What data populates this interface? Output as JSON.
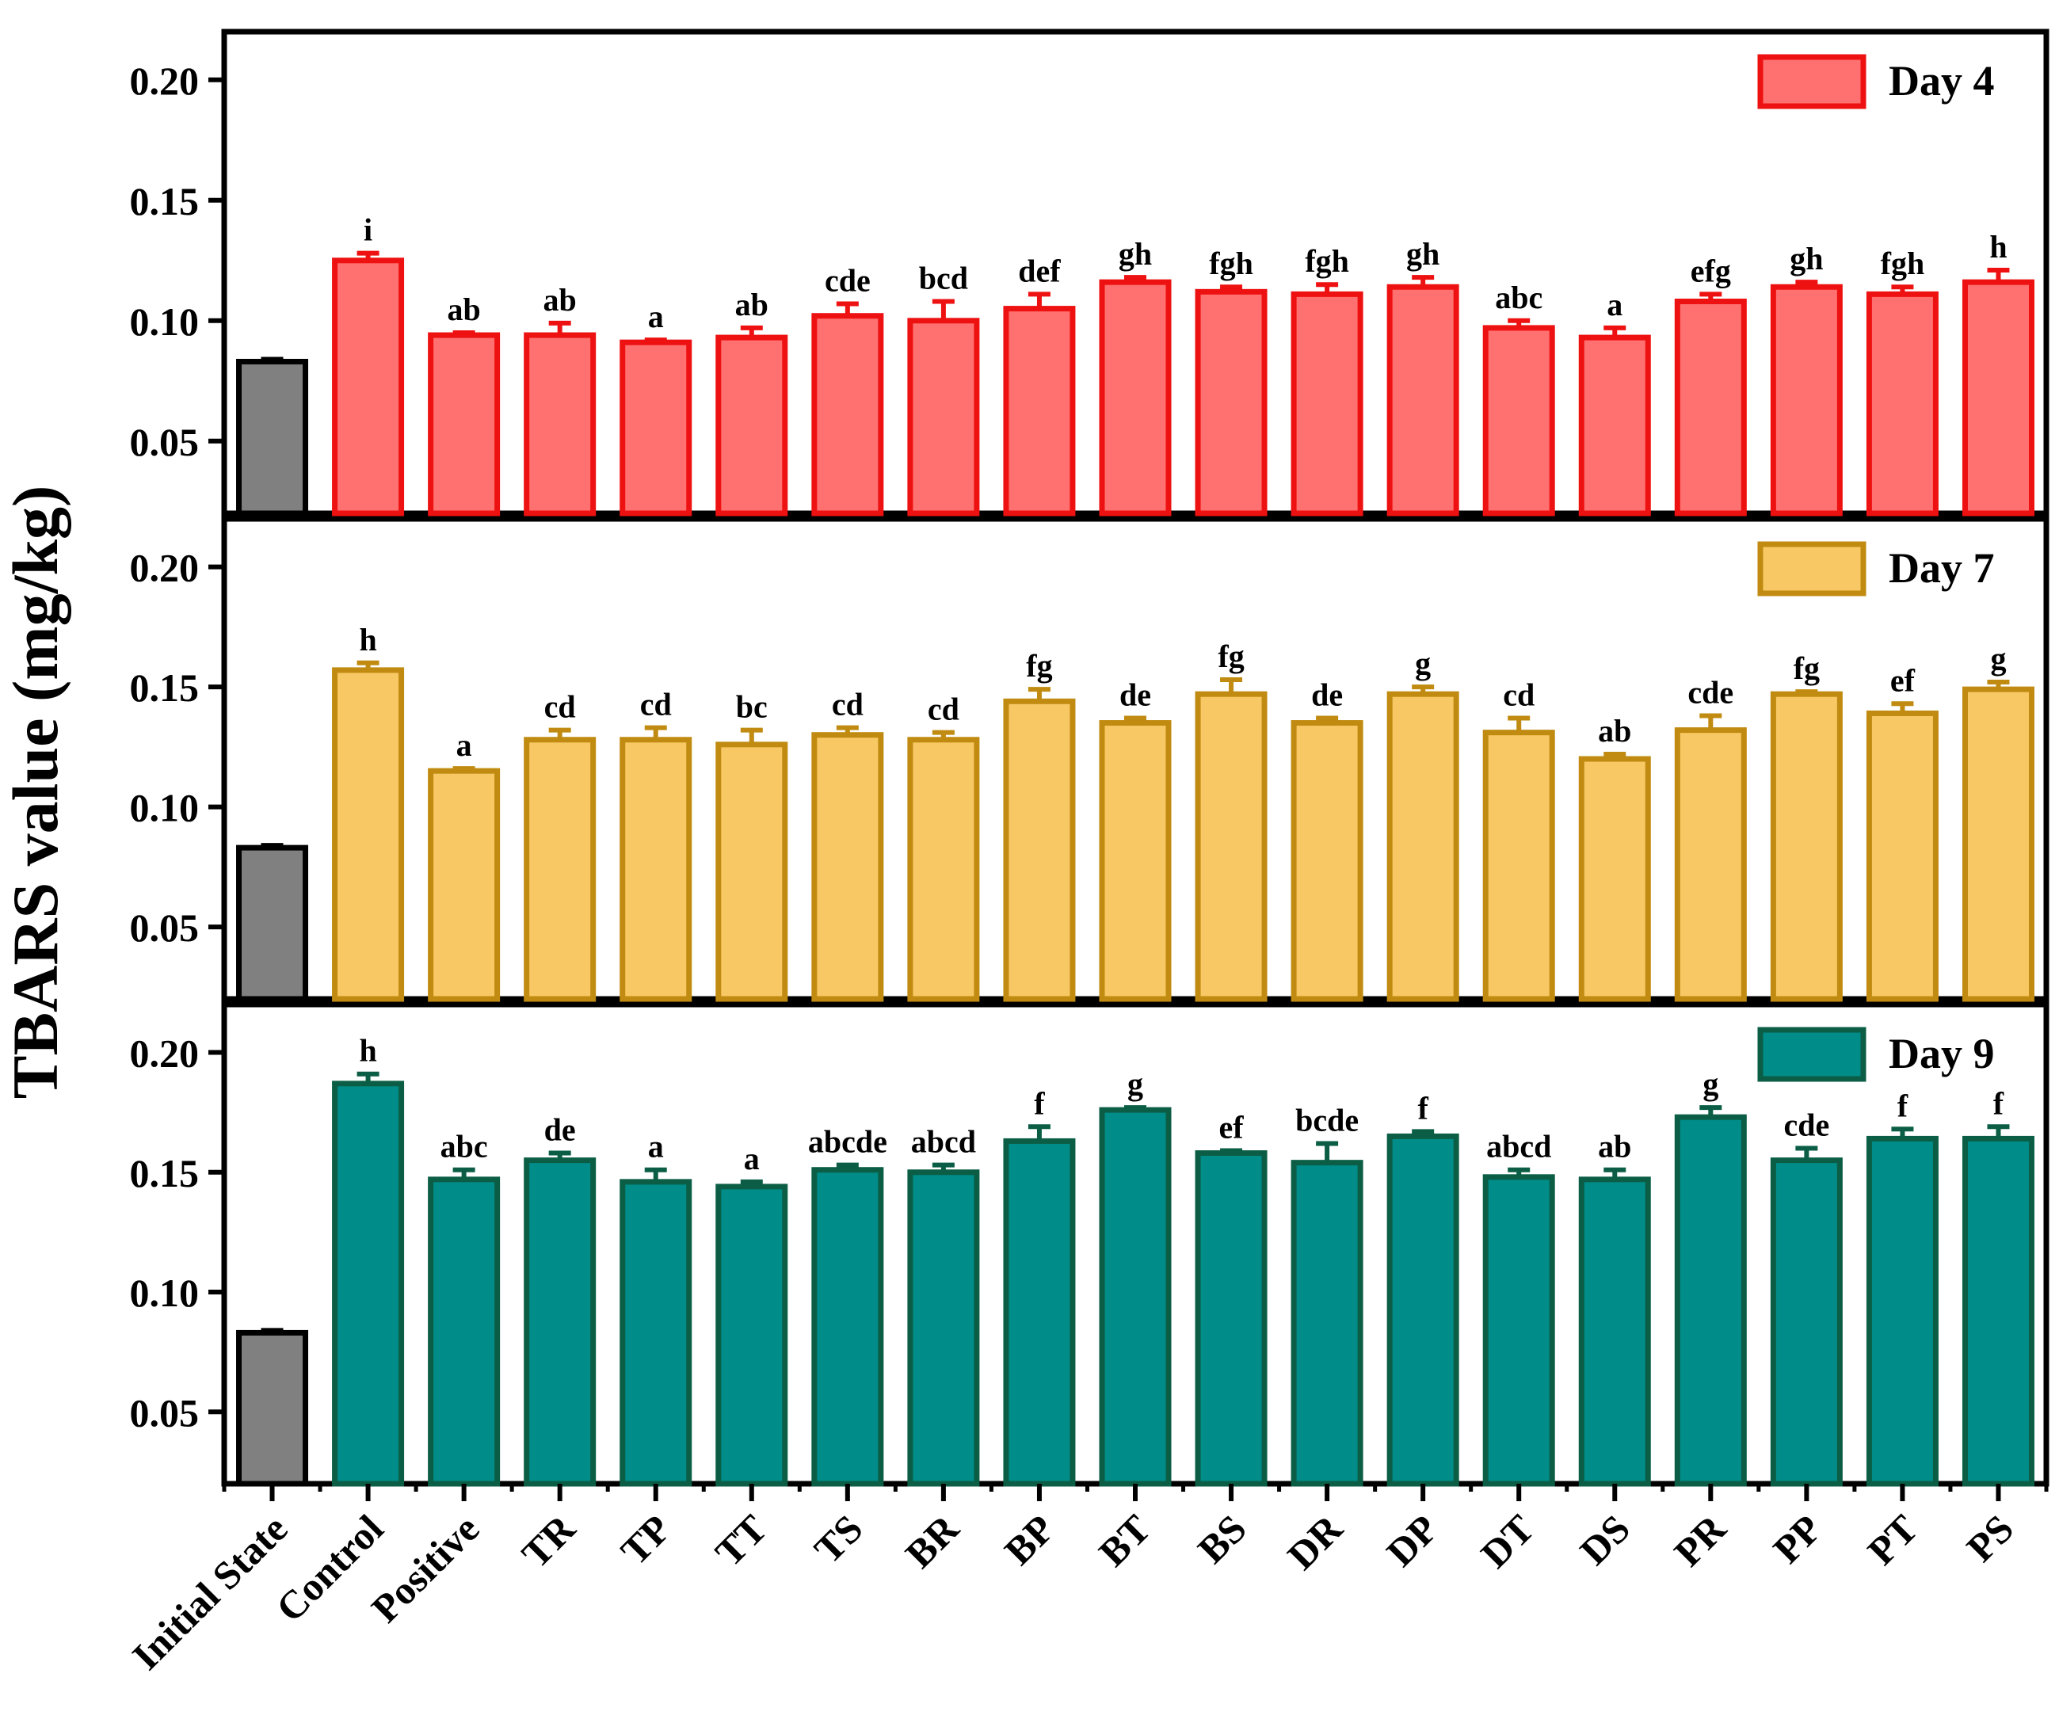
{
  "chart_data": {
    "type": "bar",
    "ylabel": "TBARS value (mg/kg)",
    "ylim": [
      0.02,
      0.22
    ],
    "yticks": [
      0.05,
      0.1,
      0.15,
      0.2
    ],
    "ytick_labels": [
      "0.05",
      "0.10",
      "0.15",
      "0.20"
    ],
    "categories": [
      "Initial State",
      "Control",
      "Positive",
      "TR",
      "TP",
      "TT",
      "TS",
      "BR",
      "BP",
      "BT",
      "BS",
      "DR",
      "DP",
      "DT",
      "DS",
      "PR",
      "PP",
      "PT",
      "PS"
    ],
    "initial_color": "#808080",
    "series": [
      {
        "name": "Day 4",
        "fill": "#FF7070",
        "stroke": "#EE1111",
        "values": [
          0.083,
          0.125,
          0.094,
          0.094,
          0.091,
          0.093,
          0.102,
          0.1,
          0.105,
          0.116,
          0.112,
          0.111,
          0.114,
          0.097,
          0.093,
          0.108,
          0.114,
          0.111,
          0.116
        ],
        "errors": [
          0.001,
          0.003,
          0.001,
          0.005,
          0.001,
          0.004,
          0.005,
          0.008,
          0.006,
          0.002,
          0.002,
          0.004,
          0.004,
          0.003,
          0.004,
          0.003,
          0.002,
          0.003,
          0.005
        ],
        "letters": [
          "",
          "i",
          "ab",
          "ab",
          "a",
          "ab",
          "cde",
          "bcd",
          "def",
          "gh",
          "fgh",
          "fgh",
          "gh",
          "abc",
          "a",
          "efg",
          "gh",
          "fgh",
          "h"
        ]
      },
      {
        "name": "Day 7",
        "fill": "#F8C865",
        "stroke": "#C08B10",
        "values": [
          0.083,
          0.157,
          0.115,
          0.128,
          0.128,
          0.126,
          0.13,
          0.128,
          0.144,
          0.135,
          0.147,
          0.135,
          0.147,
          0.131,
          0.12,
          0.132,
          0.147,
          0.139,
          0.149
        ],
        "errors": [
          0.001,
          0.003,
          0.001,
          0.004,
          0.005,
          0.006,
          0.003,
          0.003,
          0.005,
          0.002,
          0.006,
          0.002,
          0.003,
          0.006,
          0.002,
          0.006,
          0.001,
          0.004,
          0.003
        ],
        "letters": [
          "",
          "h",
          "a",
          "cd",
          "cd",
          "bc",
          "cd",
          "cd",
          "fg",
          "de",
          "fg",
          "de",
          "g",
          "cd",
          "ab",
          "cde",
          "fg",
          "ef",
          "g"
        ]
      },
      {
        "name": "Day 9",
        "fill": "#008C88",
        "stroke": "#0B5E45",
        "values": [
          0.083,
          0.187,
          0.147,
          0.155,
          0.146,
          0.144,
          0.151,
          0.15,
          0.163,
          0.176,
          0.158,
          0.154,
          0.165,
          0.148,
          0.147,
          0.173,
          0.155,
          0.164,
          0.164
        ],
        "errors": [
          0.001,
          0.004,
          0.004,
          0.003,
          0.005,
          0.002,
          0.002,
          0.003,
          0.006,
          0.001,
          0.001,
          0.008,
          0.002,
          0.003,
          0.004,
          0.004,
          0.005,
          0.004,
          0.005
        ],
        "letters": [
          "",
          "h",
          "abc",
          "de",
          "a",
          "a",
          "abcde",
          "abcd",
          "f",
          "g",
          "ef",
          "bcde",
          "f",
          "abcd",
          "ab",
          "g",
          "cde",
          "f",
          "f"
        ]
      }
    ]
  }
}
